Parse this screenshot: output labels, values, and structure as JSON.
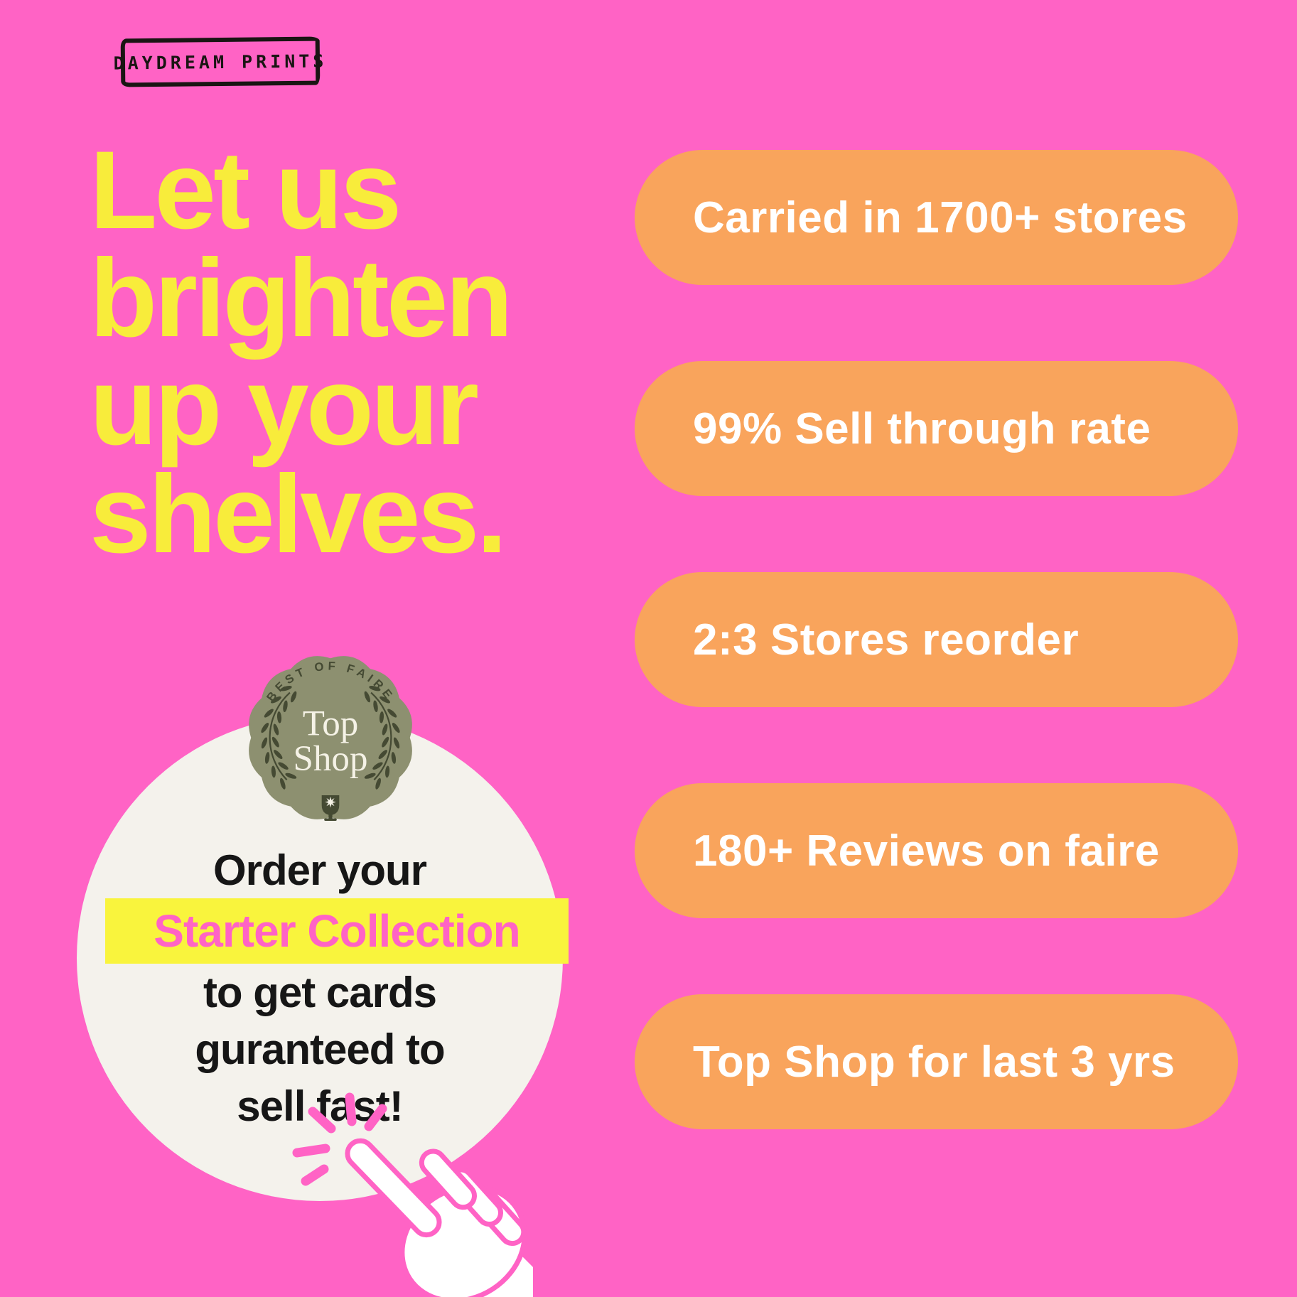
{
  "brand": {
    "logo_text": "DAYDREAM PRINTS"
  },
  "headline": {
    "lines": [
      "Let us",
      "brighten",
      "up your",
      "shelves."
    ]
  },
  "stats": [
    {
      "label": "Carried in 1700+ stores"
    },
    {
      "label": "99% Sell through rate"
    },
    {
      "label": "2:3 Stores reorder"
    },
    {
      "label": "180+ Reviews on faire"
    },
    {
      "label": "Top Shop for last 3 yrs"
    }
  ],
  "badge": {
    "arc_text": "BEST OF FAIRE",
    "title_top": "Top",
    "title_bottom": "Shop"
  },
  "cta": {
    "line_before": "Order your",
    "highlight": "Starter Collection",
    "line_after_1": "to get cards",
    "line_after_2": "guranteed to",
    "line_after_3": "sell fast!"
  },
  "colors": {
    "background_pink": "#FF63C5",
    "headline_yellow": "#F8EC3B",
    "pill_orange": "#F9A45C",
    "pill_text": "#FFFFFF",
    "circle_offwhite": "#F4F2EC",
    "highlight_yellow": "#F9F43D",
    "highlight_text_pink": "#FF63C5",
    "badge_sage": "#8D9070",
    "badge_dark_olive": "#454A33",
    "badge_cream": "#F5F2E6",
    "text_black": "#161616",
    "logo_black": "#191513"
  }
}
